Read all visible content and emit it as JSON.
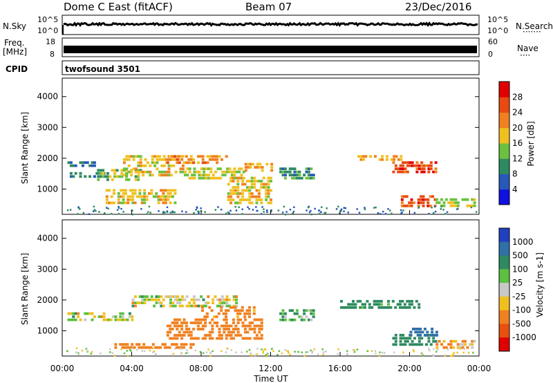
{
  "header": {
    "radar": "Dome C East (fitACF)",
    "beam": "Beam 07",
    "date": "23/Dec/2016"
  },
  "panels": {
    "nsky_label": "N.Sky",
    "nsky_left_ticks": [
      "10^5",
      "10^0"
    ],
    "nsky_right_ticks": [
      "10^5",
      "10^0"
    ],
    "nsearch_label": "N.Search",
    "freq_label_1": "Freq.",
    "freq_label_2": "[MHz]",
    "freq_ticks": [
      "18",
      "8"
    ],
    "nave_label": "Nave",
    "nave_ticks": [
      "60",
      "0"
    ],
    "cpid_label": "CPID",
    "cpid_value": "twofsound 3501"
  },
  "x_axis": {
    "title": "Time UT",
    "ticks": [
      "00:00",
      "04:00",
      "08:00",
      "12:00",
      "16:00",
      "20:00",
      "00:00"
    ]
  },
  "power_panel": {
    "ylabel": "Slant Range [km]",
    "yticks": [
      "1000",
      "2000",
      "3000",
      "4000"
    ],
    "cbar_label": "Power [dB]",
    "cbar_ticks": [
      "4",
      "8",
      "12",
      "16",
      "20",
      "24",
      "28"
    ],
    "colors": [
      "#1010e0",
      "#2858b8",
      "#2e8a60",
      "#6cc040",
      "#f0c020",
      "#f08020",
      "#e84a10",
      "#e00000"
    ]
  },
  "velocity_panel": {
    "ylabel": "Slant Range [km]",
    "yticks": [
      "1000",
      "2000",
      "3000",
      "4000"
    ],
    "cbar_label": "Velocity [m s-1]",
    "cbar_ticks": [
      "1000",
      "500",
      "100",
      "25",
      "-25",
      "-100",
      "-500",
      "-1000"
    ],
    "colors": [
      "#2040c0",
      "#3070a8",
      "#2e8a60",
      "#5cc040",
      "#c8c8c8",
      "#f0c020",
      "#f08020",
      "#e85010",
      "#e00000"
    ]
  },
  "chart_data": {
    "type": "heatmap",
    "x_unit": "hours UT",
    "x_range": [
      0,
      24
    ],
    "y_unit": "km",
    "y_range": [
      180,
      4600
    ],
    "power_echo_regions": [
      {
        "t": [
          0.3,
          2.5
        ],
        "range": [
          1350,
          1550
        ],
        "power_db": 8
      },
      {
        "t": [
          0.3,
          1.8
        ],
        "range": [
          1750,
          1900
        ],
        "power_db": 8
      },
      {
        "t": [
          2.0,
          4.5
        ],
        "range": [
          1250,
          1650
        ],
        "power_db": 14
      },
      {
        "t": [
          3.5,
          7.0
        ],
        "range": [
          1400,
          2100
        ],
        "power_db": 18
      },
      {
        "t": [
          2.5,
          6.5
        ],
        "range": [
          500,
          1000
        ],
        "power_db": 18
      },
      {
        "t": [
          6.0,
          9.5
        ],
        "range": [
          1800,
          2100
        ],
        "power_db": 22
      },
      {
        "t": [
          7.0,
          10.5
        ],
        "range": [
          1300,
          1700
        ],
        "power_db": 16
      },
      {
        "t": [
          9.5,
          12.0
        ],
        "range": [
          500,
          1400
        ],
        "power_db": 18
      },
      {
        "t": [
          10.5,
          12.0
        ],
        "range": [
          1600,
          1850
        ],
        "power_db": 20
      },
      {
        "t": [
          12.5,
          14.5
        ],
        "range": [
          1300,
          1700
        ],
        "power_db": 10
      },
      {
        "t": [
          17.0,
          19.5
        ],
        "range": [
          1900,
          2100
        ],
        "power_db": 20
      },
      {
        "t": [
          19.0,
          21.5
        ],
        "range": [
          1500,
          1900
        ],
        "power_db": 26
      },
      {
        "t": [
          19.5,
          21.5
        ],
        "range": [
          400,
          800
        ],
        "power_db": 26
      },
      {
        "t": [
          21.5,
          23.8
        ],
        "range": [
          400,
          700
        ],
        "power_db": 16
      }
    ],
    "velocity_echo_regions": [
      {
        "t": [
          0.3,
          4.0
        ],
        "range": [
          1300,
          1600
        ],
        "velocity": 0
      },
      {
        "t": [
          4.0,
          10.0
        ],
        "range": [
          1750,
          2150
        ],
        "velocity": 0
      },
      {
        "t": [
          3.0,
          7.5
        ],
        "range": [
          450,
          600
        ],
        "velocity": -300
      },
      {
        "t": [
          6.0,
          11.5
        ],
        "range": [
          700,
          1400
        ],
        "velocity": -300
      },
      {
        "t": [
          8.0,
          11.0
        ],
        "range": [
          1400,
          1800
        ],
        "velocity": -200
      },
      {
        "t": [
          12.5,
          14.5
        ],
        "range": [
          1300,
          1700
        ],
        "velocity": 100
      },
      {
        "t": [
          16.0,
          20.5
        ],
        "range": [
          1700,
          2000
        ],
        "velocity": 200
      },
      {
        "t": [
          19.0,
          21.5
        ],
        "range": [
          500,
          900
        ],
        "velocity": 300
      },
      {
        "t": [
          20.0,
          21.5
        ],
        "range": [
          800,
          1100
        ],
        "velocity": 800
      },
      {
        "t": [
          21.5,
          23.8
        ],
        "range": [
          400,
          700
        ],
        "velocity": -100
      }
    ]
  }
}
